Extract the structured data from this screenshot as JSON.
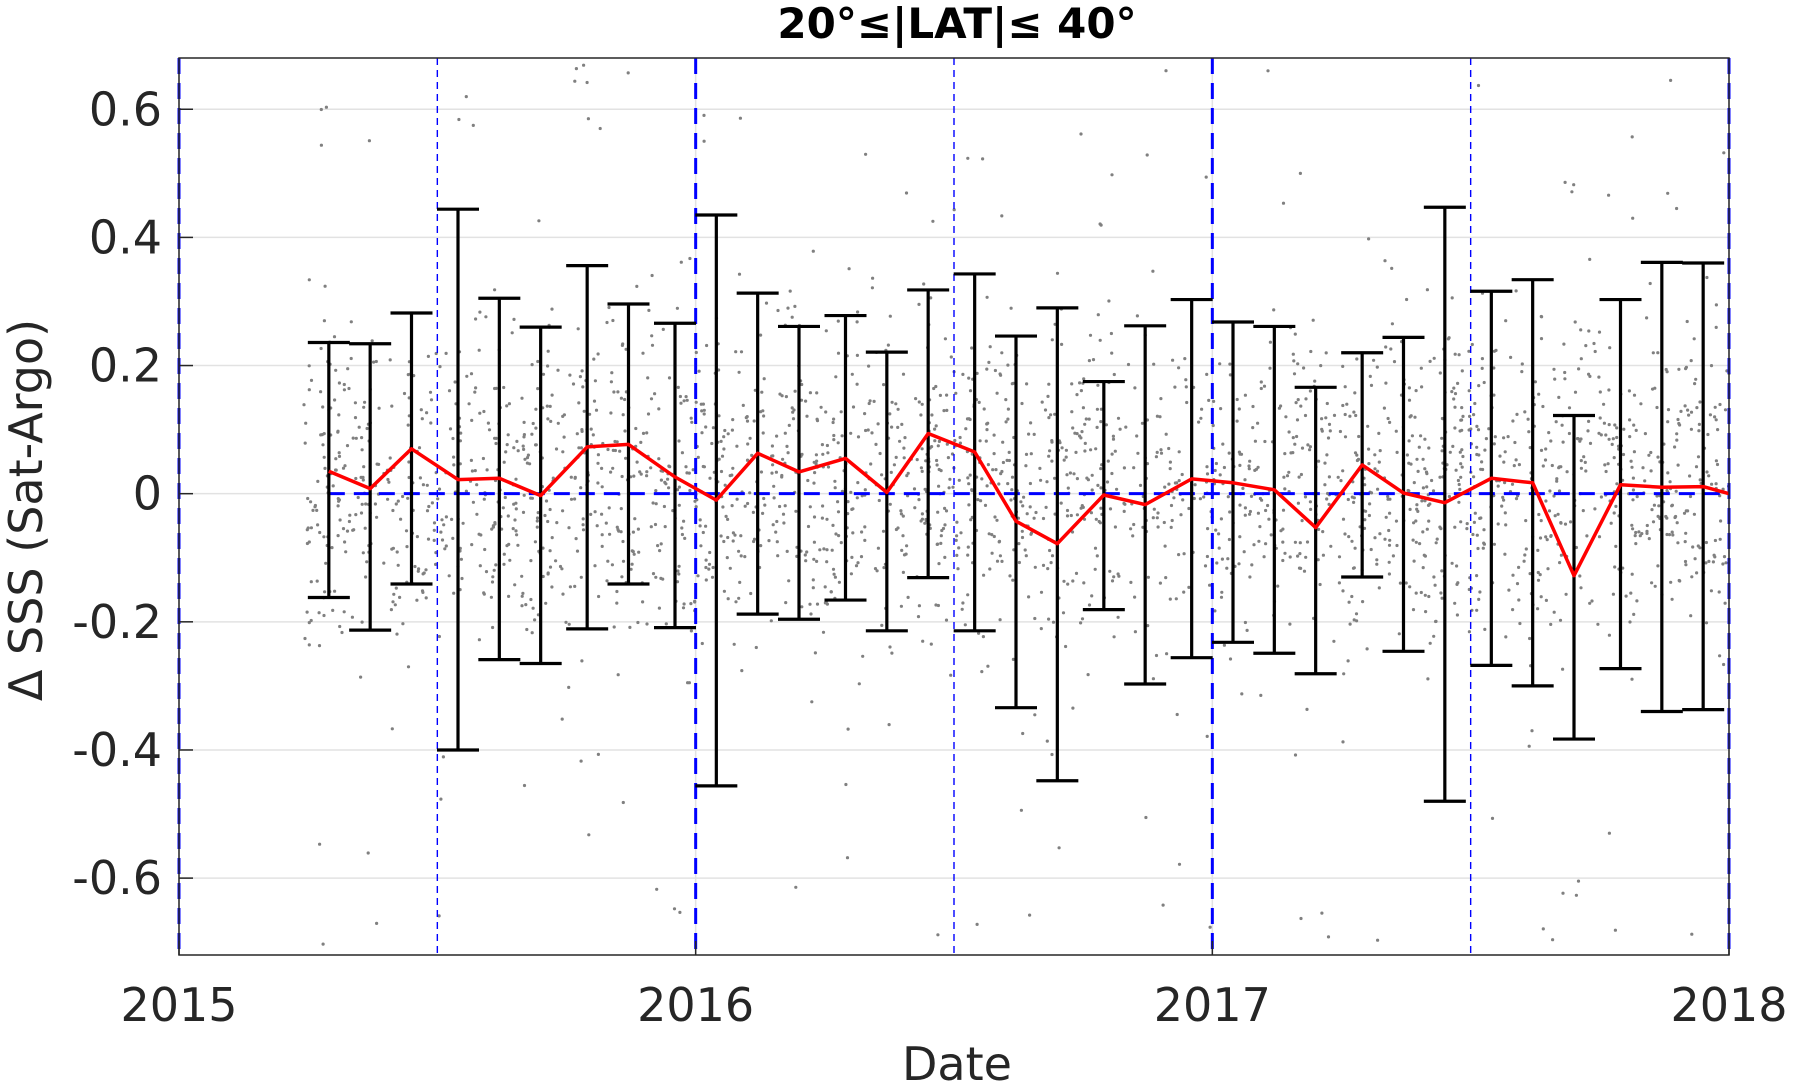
{
  "chart_data": {
    "type": "line",
    "title": "20°≤|LAT|≤ 40°",
    "xlabel": "Date",
    "ylabel": "Δ SSS (Sat-Argo)",
    "xlim": [
      2015.0,
      2018.0
    ],
    "ylim": [
      -0.72,
      0.68
    ],
    "xticks": [
      {
        "value": 2015,
        "label": "2015"
      },
      {
        "value": 2016,
        "label": "2016"
      },
      {
        "value": 2017,
        "label": "2017"
      },
      {
        "value": 2018,
        "label": "2018"
      }
    ],
    "yticks": [
      {
        "value": 0.6,
        "label": "0.6"
      },
      {
        "value": 0.4,
        "label": "0.4"
      },
      {
        "value": 0.2,
        "label": "0.2"
      },
      {
        "value": 0,
        "label": "0"
      },
      {
        "value": -0.2,
        "label": "-0.2"
      },
      {
        "value": -0.4,
        "label": "-0.4"
      },
      {
        "value": -0.6,
        "label": "-0.6"
      }
    ],
    "grid": true,
    "zero_line": {
      "y": 0,
      "x_start": 2015.29,
      "x_end": 2018.0,
      "color": "#0000ff",
      "style": "dashed"
    },
    "year_lines": {
      "x": [
        2015.0,
        2016.0,
        2017.0,
        2018.0
      ],
      "color": "#0000ff",
      "style": "dashed-thick"
    },
    "half_year_lines": {
      "x": [
        2015.5,
        2016.5,
        2017.5
      ],
      "color": "#0000ff",
      "style": "dashed-thin"
    },
    "series": [
      {
        "type": "line",
        "color": "#ff0000",
        "x": [
          2015.29,
          2015.37,
          2015.45,
          2015.54,
          2015.62,
          2015.7,
          2015.79,
          2015.87,
          2015.96,
          2016.04,
          2016.12,
          2016.2,
          2016.29,
          2016.37,
          2016.45,
          2016.54,
          2016.62,
          2016.7,
          2016.79,
          2016.87,
          2016.96,
          2017.04,
          2017.12,
          2017.2,
          2017.29,
          2017.37,
          2017.45,
          2017.54,
          2017.62,
          2017.7,
          2017.79,
          2017.87,
          2017.95,
          2018.0
        ],
        "values": [
          0.035,
          0.008,
          0.07,
          0.022,
          0.024,
          -0.003,
          0.073,
          0.077,
          0.026,
          -0.01,
          0.063,
          0.034,
          0.055,
          0.002,
          0.094,
          0.065,
          -0.043,
          -0.078,
          -0.002,
          -0.017,
          0.023,
          0.017,
          0.006,
          -0.053,
          0.045,
          0.001,
          -0.014,
          0.024,
          0.017,
          -0.128,
          0.014,
          0.01,
          0.011,
          0.0
        ]
      },
      {
        "type": "errorbar",
        "color": "#000000",
        "x": [
          2015.29,
          2015.37,
          2015.45,
          2015.54,
          2015.62,
          2015.7,
          2015.79,
          2015.87,
          2015.96,
          2016.04,
          2016.12,
          2016.2,
          2016.29,
          2016.37,
          2016.45,
          2016.54,
          2016.62,
          2016.7,
          2016.79,
          2016.87,
          2016.96,
          2017.04,
          2017.12,
          2017.2,
          2017.29,
          2017.37,
          2017.45,
          2017.54,
          2017.62,
          2017.7,
          2017.79,
          2017.87,
          2017.95
        ],
        "upper": [
          0.236,
          0.234,
          0.282,
          0.444,
          0.305,
          0.26,
          0.356,
          0.296,
          0.266,
          0.435,
          0.313,
          0.261,
          0.278,
          0.221,
          0.318,
          0.343,
          0.246,
          0.29,
          0.175,
          0.262,
          0.303,
          0.268,
          0.261,
          0.166,
          0.22,
          0.244,
          0.447,
          0.316,
          0.334,
          0.122,
          0.303,
          0.361,
          0.36
        ],
        "lower": [
          -0.162,
          -0.213,
          -0.141,
          -0.4,
          -0.259,
          -0.265,
          -0.211,
          -0.141,
          -0.209,
          -0.456,
          -0.188,
          -0.196,
          -0.166,
          -0.214,
          -0.131,
          -0.214,
          -0.334,
          -0.448,
          -0.181,
          -0.297,
          -0.256,
          -0.232,
          -0.249,
          -0.281,
          -0.13,
          -0.246,
          -0.48,
          -0.268,
          -0.3,
          -0.383,
          -0.273,
          -0.34,
          -0.337
        ]
      }
    ],
    "scatter": {
      "color": "#808080",
      "x_start": 2015.24,
      "x_end": 2018.0,
      "count": 2600,
      "mean": 0.02,
      "spread": 0.17
    }
  }
}
